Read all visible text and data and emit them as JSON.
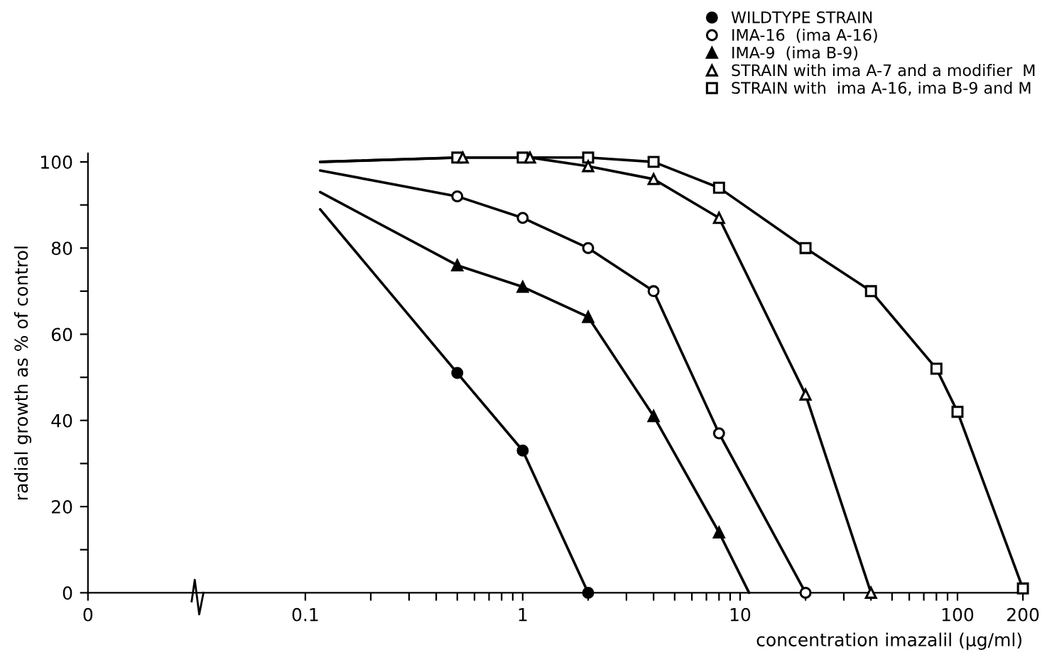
{
  "chart_data": {
    "type": "line",
    "xlabel": "concentration imazalil (µg/ml)",
    "ylabel": "radial growth as % of control",
    "log": "x",
    "xlim": [
      0.01,
      200
    ],
    "xticks": [
      {
        "value": 0.01,
        "label": "0"
      },
      {
        "value": 0.1,
        "label": "0.1"
      },
      {
        "value": 0.2,
        "label": null
      },
      {
        "value": 0.3,
        "label": null
      },
      {
        "value": 0.4,
        "label": null
      },
      {
        "value": 0.5,
        "label": null
      },
      {
        "value": 0.6,
        "label": null
      },
      {
        "value": 0.7,
        "label": null
      },
      {
        "value": 0.8,
        "label": null
      },
      {
        "value": 0.9,
        "label": null
      },
      1,
      {
        "value": 2,
        "label": null
      },
      {
        "value": 3,
        "label": null
      },
      {
        "value": 4,
        "label": null
      },
      {
        "value": 5,
        "label": null
      },
      {
        "value": 6,
        "label": null
      },
      {
        "value": 7,
        "label": null
      },
      {
        "value": 8,
        "label": null
      },
      {
        "value": 9,
        "label": null
      },
      10,
      {
        "value": 20,
        "label": null
      },
      {
        "value": 30,
        "label": null
      },
      {
        "value": 40,
        "label": null
      },
      {
        "value": 50,
        "label": null
      },
      {
        "value": 60,
        "label": null
      },
      {
        "value": 70,
        "label": null
      },
      {
        "value": 80,
        "label": null
      },
      {
        "value": 90,
        "label": null
      },
      100,
      200
    ],
    "ylim": [
      0,
      102
    ],
    "yticks": [
      0,
      {
        "value": 10,
        "label": null
      },
      20,
      {
        "value": 30,
        "label": null
      },
      40,
      {
        "value": 50,
        "label": null
      },
      60,
      {
        "value": 70,
        "label": null
      },
      80,
      {
        "value": 90,
        "label": null
      },
      100
    ],
    "grid": false,
    "legend": "top right",
    "line_style": "solid",
    "series": [
      {
        "color": "#000000",
        "marker": "none",
        "x": [
          0.117,
          0.5,
          1,
          2
        ],
        "values": [
          89,
          51,
          33,
          0
        ]
      },
      {
        "color": "#000000",
        "marker": "none",
        "x": [
          0.117,
          0.5,
          1,
          2,
          4,
          8,
          20
        ],
        "values": [
          98,
          92,
          87,
          80,
          70,
          37,
          0
        ]
      },
      {
        "color": "#000000",
        "marker": "none",
        "x": [
          0.117,
          0.5,
          1,
          2,
          4,
          8,
          11
        ],
        "values": [
          93,
          76,
          71,
          64,
          41,
          14,
          0
        ]
      },
      {
        "color": "#000000",
        "marker": "none",
        "x": [
          0.117,
          0.53,
          1.08,
          2,
          4,
          8,
          20,
          40
        ],
        "values": [
          100,
          101,
          101,
          99,
          96,
          87,
          46,
          0
        ]
      },
      {
        "color": "#000000",
        "marker": "none",
        "x": [
          0.117,
          0.5,
          1,
          2,
          4,
          8,
          20,
          40,
          80,
          100,
          200
        ],
        "values": [
          100,
          101,
          101,
          101,
          100,
          94,
          80,
          70,
          52,
          42,
          1
        ]
      },
      {
        "type": "scatter",
        "name": "WILDTYPE STRAIN",
        "color": "#000000",
        "marker": "circle",
        "x": [
          0.5,
          1,
          2
        ],
        "values": [
          51,
          33,
          0
        ]
      },
      {
        "type": "scatter",
        "name": "IMA-16  (ima A-16)",
        "color": "#ffffff",
        "marker": "circle",
        "x": [
          0.5,
          1,
          2,
          4,
          8,
          20
        ],
        "values": [
          92,
          87,
          80,
          70,
          37,
          0
        ]
      },
      {
        "type": "scatter",
        "name": "IMA-9  (ima B-9)",
        "color": "#000000",
        "marker": "triangle",
        "x": [
          0.5,
          1,
          2,
          4,
          8
        ],
        "values": [
          76,
          71,
          64,
          41,
          14
        ]
      },
      {
        "type": "scatter",
        "name": "STRAIN with ima A-7 and a modifier  M",
        "color": "#ffffff",
        "marker": "triangle",
        "x": [
          0.53,
          1.08,
          2,
          4,
          8,
          20,
          40
        ],
        "values": [
          101,
          101,
          99,
          96,
          87,
          46,
          0
        ]
      },
      {
        "type": "scatter",
        "name": "STRAIN with  ima A-16, ima B-9 and M",
        "color": "#ffffff",
        "marker": "square",
        "x": [
          0.5,
          1,
          2,
          4,
          8,
          20,
          40,
          80,
          100,
          200
        ],
        "values": [
          101,
          101,
          101,
          100,
          94,
          80,
          70,
          52,
          42,
          1
        ]
      }
    ]
  }
}
